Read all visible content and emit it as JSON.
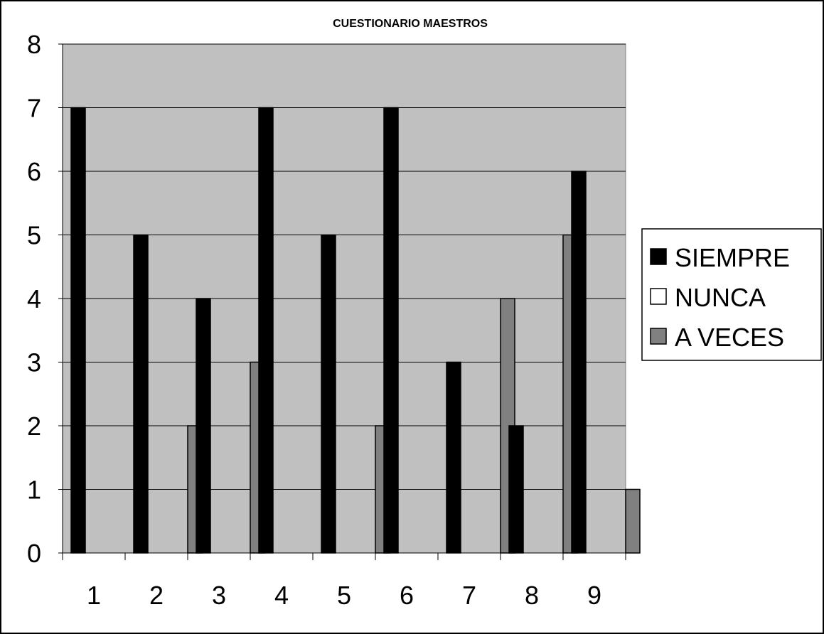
{
  "chart_data": {
    "type": "bar",
    "title": "CUESTIONARIO  MAESTROS",
    "xlabel": "",
    "ylabel": "",
    "categories": [
      "1",
      "2",
      "3",
      "4",
      "5",
      "6",
      "7",
      "8",
      "9"
    ],
    "series": [
      {
        "name": "SIEMPRE",
        "values": [
          7,
          5,
          4,
          7,
          5,
          7,
          3,
          2,
          6
        ],
        "color": "#000000"
      },
      {
        "name": "NUNCA",
        "values": [
          0,
          0,
          0,
          0,
          0,
          0,
          0,
          0,
          0
        ],
        "color": "#ffffff"
      },
      {
        "name": "A VECES",
        "values": [
          0,
          2,
          3,
          0,
          2,
          0,
          4,
          5,
          1
        ],
        "color": "#808080"
      }
    ],
    "ylim": [
      0,
      8
    ],
    "yticks": [
      "0",
      "1",
      "2",
      "3",
      "4",
      "5",
      "6",
      "7",
      "8"
    ],
    "grid": true,
    "legend_position": "right",
    "plot_background": "#c0c0c0"
  }
}
